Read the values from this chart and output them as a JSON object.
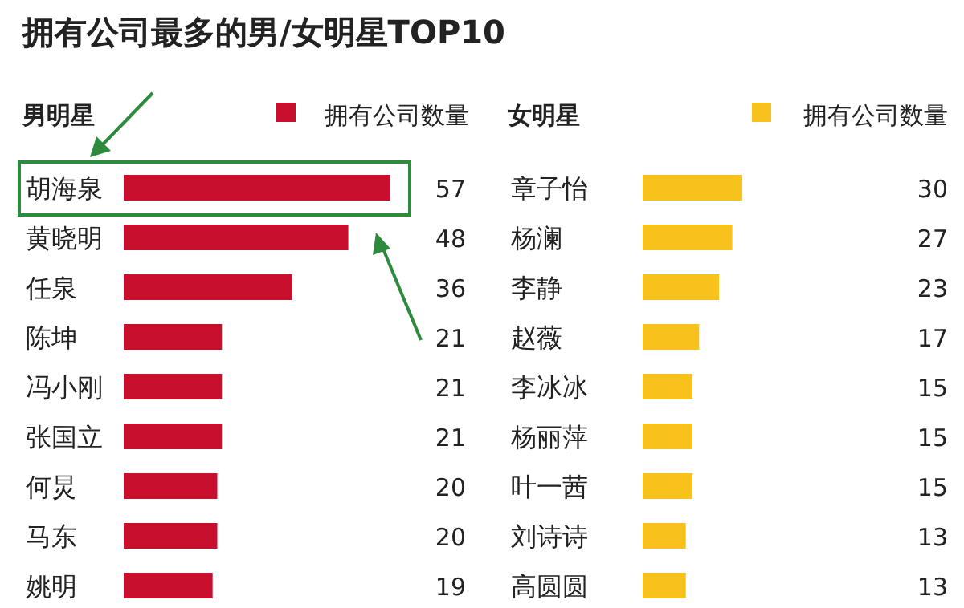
{
  "chart_data": [
    {
      "type": "bar",
      "orientation": "horizontal",
      "title": "拥有公司最多的男/女明星TOP10",
      "subtitle": "男明星",
      "categories": [
        "胡海泉",
        "黄晓明",
        "任泉",
        "陈坤",
        "冯小刚",
        "张国立",
        "何炅",
        "马东",
        "姚明"
      ],
      "series": [
        {
          "name": "拥有公司数量",
          "color": "#c8102e",
          "values": [
            57,
            48,
            36,
            21,
            21,
            21,
            20,
            20,
            19
          ]
        }
      ],
      "data_labels": true,
      "legend": "top right",
      "tick_labels": "y"
    },
    {
      "type": "bar",
      "orientation": "horizontal",
      "subtitle": "女明星",
      "categories": [
        "章子怡",
        "杨澜",
        "李静",
        "赵薇",
        "李冰冰",
        "杨丽萍",
        "叶一茜",
        "刘诗诗",
        "高圆圆"
      ],
      "series": [
        {
          "name": "拥有公司数量",
          "color": "#f7c21b",
          "values": [
            30,
            27,
            23,
            17,
            15,
            15,
            15,
            13,
            13
          ]
        }
      ],
      "data_labels": true,
      "legend": "top right",
      "tick_labels": "y"
    }
  ]
}
